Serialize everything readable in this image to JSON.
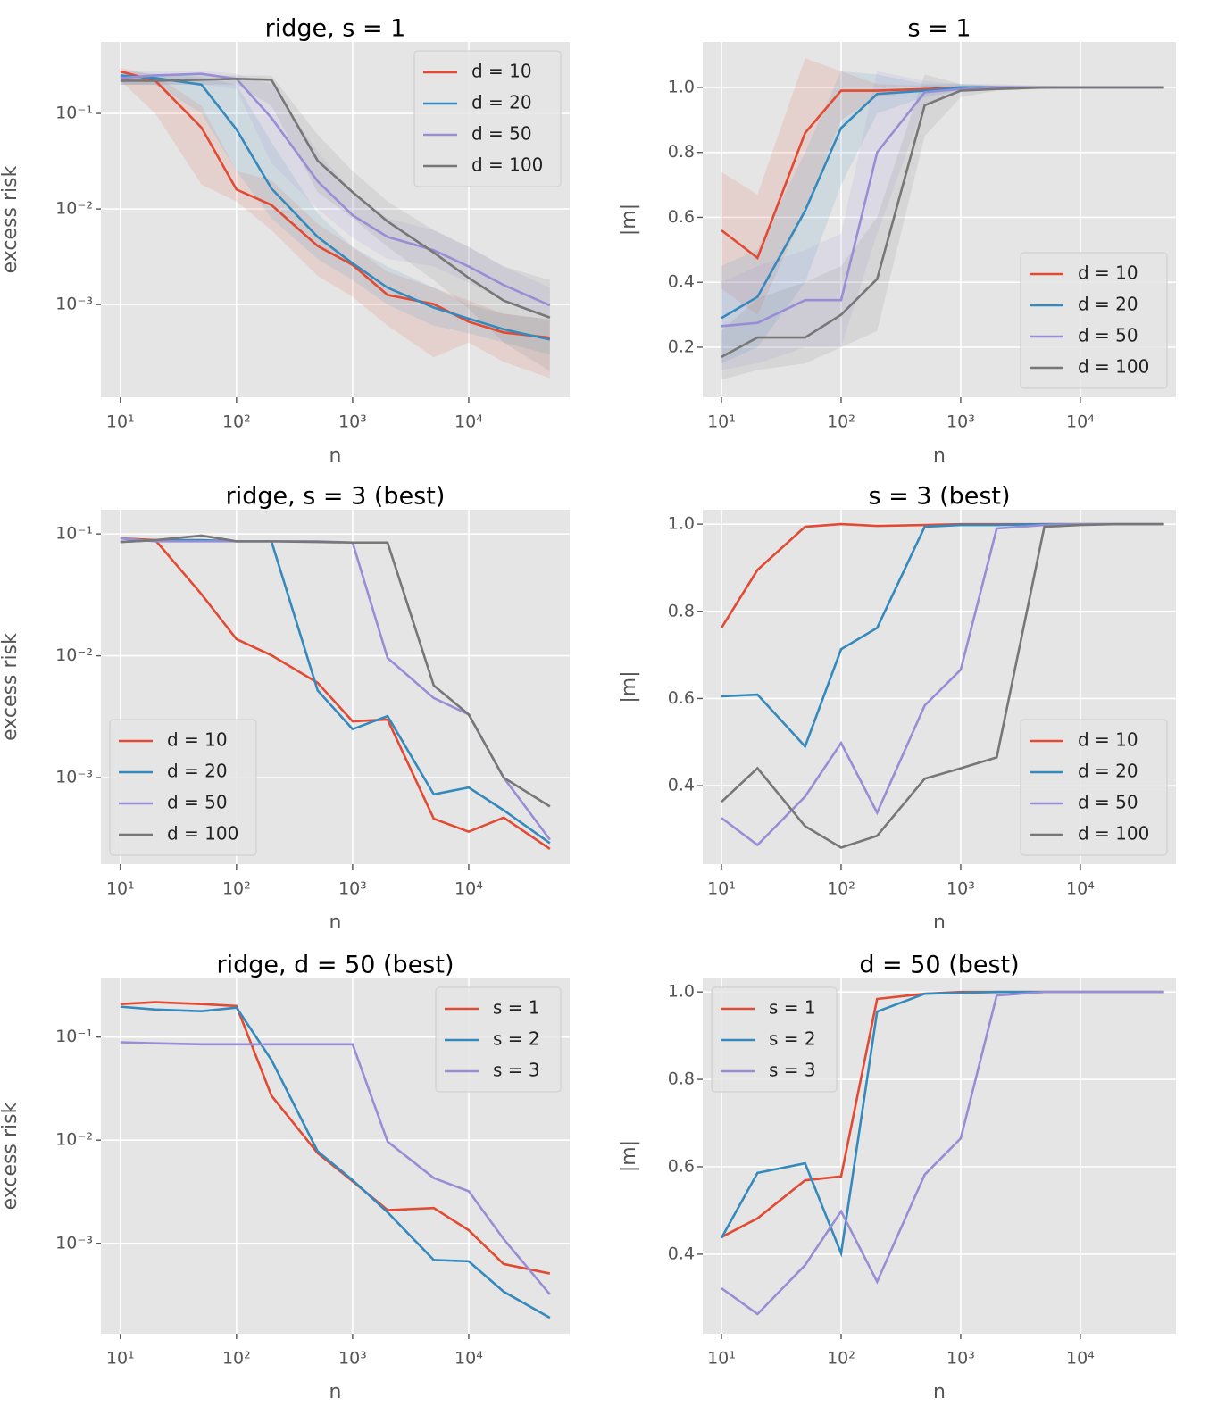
{
  "chart_data": [
    {
      "type": "line",
      "title": "ridge, s = 1",
      "xlabel": "n",
      "ylabel": "excess risk",
      "xscale": "log",
      "yscale": "log",
      "grid": true,
      "legend": "upper right",
      "x": [
        10,
        20,
        50,
        100,
        200,
        500,
        1000,
        2000,
        5000,
        10000,
        20000,
        50000
      ],
      "xlim": [
        6.8,
        74000
      ],
      "xticks": [
        {
          "value": 10,
          "label": "10¹"
        },
        {
          "value": 100,
          "label": "10²"
        },
        {
          "value": 1000,
          "label": "10³"
        },
        {
          "value": 10000,
          "label": "10⁴"
        }
      ],
      "ylim": [
        0.000107,
        0.56
      ],
      "yticks": [
        {
          "value": 0.1,
          "label": "10⁻¹"
        },
        {
          "value": 0.01,
          "label": "10⁻²"
        },
        {
          "value": 0.001,
          "label": "10⁻³"
        }
      ],
      "series": [
        {
          "name": "d = 10",
          "color": "#E24A33",
          "values": [
            0.275,
            0.22,
            0.071,
            0.016,
            0.011,
            0.0041,
            0.0026,
            0.00126,
            0.00101,
            0.00066,
            0.00051,
            0.00045
          ],
          "lower": [
            0.22,
            0.1,
            0.018,
            0.012,
            0.006,
            0.002,
            0.0012,
            0.0006,
            0.00028,
            0.0004,
            0.00025,
            0.00017
          ],
          "upper": [
            0.3,
            0.25,
            0.12,
            0.025,
            0.02,
            0.007,
            0.004,
            0.0022,
            0.0015,
            0.0011,
            0.0008,
            0.0007
          ]
        },
        {
          "name": "d = 20",
          "color": "#348ABD",
          "values": [
            0.25,
            0.235,
            0.2,
            0.068,
            0.0164,
            0.0051,
            0.0027,
            0.0015,
            0.00093,
            0.00071,
            0.00055,
            0.00043
          ],
          "lower": [
            0.2,
            0.2,
            0.1,
            0.025,
            0.008,
            0.003,
            0.0018,
            0.001,
            0.0006,
            0.0005,
            0.0004,
            0.0003
          ],
          "upper": [
            0.28,
            0.26,
            0.24,
            0.2,
            0.05,
            0.009,
            0.004,
            0.0025,
            0.0015,
            0.001,
            0.0008,
            0.0007
          ]
        },
        {
          "name": "d = 50",
          "color": "#988ED5",
          "values": [
            0.235,
            0.25,
            0.26,
            0.23,
            0.09,
            0.0195,
            0.0086,
            0.0051,
            0.0037,
            0.0025,
            0.0016,
            0.00098
          ],
          "lower": [
            0.2,
            0.2,
            0.2,
            0.18,
            0.03,
            0.01,
            0.005,
            0.003,
            0.0025,
            0.0017,
            0.0011,
            0.0007
          ],
          "upper": [
            0.27,
            0.28,
            0.28,
            0.26,
            0.2,
            0.04,
            0.015,
            0.008,
            0.006,
            0.004,
            0.0025,
            0.0015
          ]
        },
        {
          "name": "d = 100",
          "color": "#777777",
          "values": [
            0.22,
            0.22,
            0.225,
            0.23,
            0.225,
            0.032,
            0.015,
            0.0074,
            0.0035,
            0.0019,
            0.0011,
            0.00073
          ],
          "lower": [
            0.2,
            0.2,
            0.2,
            0.2,
            0.12,
            0.015,
            0.008,
            0.004,
            0.0018,
            0.0009,
            0.0004,
            0.0002
          ],
          "upper": [
            0.25,
            0.25,
            0.25,
            0.25,
            0.25,
            0.06,
            0.025,
            0.012,
            0.006,
            0.004,
            0.0025,
            0.0018
          ]
        }
      ]
    },
    {
      "type": "line",
      "title": "s = 1",
      "xlabel": "n",
      "ylabel": "|m|",
      "xscale": "log",
      "yscale": "linear",
      "grid": true,
      "legend": "lower right",
      "x": [
        10,
        20,
        50,
        100,
        200,
        500,
        1000,
        2000,
        5000,
        10000,
        20000,
        50000
      ],
      "xlim": [
        6.97,
        63000
      ],
      "xticks": [
        {
          "value": 10,
          "label": "10¹"
        },
        {
          "value": 100,
          "label": "10²"
        },
        {
          "value": 1000,
          "label": "10³"
        },
        {
          "value": 10000,
          "label": "10⁴"
        }
      ],
      "ylim": [
        0.046,
        1.14
      ],
      "yticks": [
        0.2,
        0.4,
        0.6,
        0.8,
        {
          "value": 1,
          "label": "1.0"
        }
      ],
      "series": [
        {
          "name": "d = 10",
          "color": "#E24A33",
          "values": [
            0.56,
            0.475,
            0.86,
            0.99,
            0.99,
            0.995,
            1,
            1,
            1,
            1,
            1,
            1
          ],
          "lower": [
            0.38,
            0.3,
            0.62,
            0.9,
            0.97,
            0.99,
            0.995,
            0.998,
            0.999,
            0.999,
            0.999,
            0.999
          ],
          "upper": [
            0.74,
            0.67,
            1.09,
            1.05,
            1.01,
            1.005,
            1.003,
            1.002,
            1.001,
            1.001,
            1.001,
            1.001
          ]
        },
        {
          "name": "d = 20",
          "color": "#348ABD",
          "values": [
            0.29,
            0.355,
            0.62,
            0.875,
            0.98,
            0.99,
            1,
            1,
            1,
            1,
            1,
            1
          ],
          "lower": [
            0.15,
            0.2,
            0.4,
            0.7,
            0.92,
            0.97,
            0.99,
            0.995,
            0.998,
            0.999,
            0.999,
            0.999
          ],
          "upper": [
            0.45,
            0.5,
            0.8,
            1.05,
            1.04,
            1.01,
            1.01,
            1.005,
            1.002,
            1.001,
            1.001,
            1.001
          ]
        },
        {
          "name": "d = 50",
          "color": "#988ED5",
          "values": [
            0.265,
            0.275,
            0.345,
            0.345,
            0.8,
            0.985,
            0.995,
            1,
            1,
            1,
            1,
            1
          ],
          "lower": [
            0.13,
            0.15,
            0.2,
            0.2,
            0.55,
            0.95,
            0.99,
            0.995,
            0.998,
            0.999,
            0.999,
            0.999
          ],
          "upper": [
            0.4,
            0.45,
            0.5,
            0.55,
            1.05,
            1.02,
            1.01,
            1.005,
            1.002,
            1.001,
            1.001,
            1.001
          ]
        },
        {
          "name": "d = 100",
          "color": "#777777",
          "values": [
            0.17,
            0.23,
            0.23,
            0.3,
            0.41,
            0.945,
            0.99,
            0.995,
            1,
            1,
            1,
            1
          ],
          "lower": [
            0.1,
            0.13,
            0.15,
            0.2,
            0.25,
            0.85,
            0.97,
            0.99,
            0.995,
            0.998,
            0.999,
            0.999
          ],
          "upper": [
            0.25,
            0.35,
            0.4,
            0.45,
            0.6,
            1.04,
            1.01,
            1.01,
            1.005,
            1.002,
            1.001,
            1.001
          ]
        }
      ]
    },
    {
      "type": "line",
      "title": "ridge, s = 3 (best)",
      "xlabel": "n",
      "ylabel": "excess risk",
      "xscale": "log",
      "yscale": "log",
      "grid": true,
      "legend": "lower left",
      "x": [
        10,
        20,
        50,
        100,
        200,
        500,
        1000,
        2000,
        5000,
        10000,
        20000,
        50000
      ],
      "xlim": [
        6.8,
        74000
      ],
      "xticks": [
        {
          "value": 10,
          "label": "10¹"
        },
        {
          "value": 100,
          "label": "10²"
        },
        {
          "value": 1000,
          "label": "10³"
        },
        {
          "value": 10000,
          "label": "10⁴"
        }
      ],
      "ylim": [
        0.000195,
        0.158
      ],
      "yticks": [
        {
          "value": 0.1,
          "label": "10⁻¹"
        },
        {
          "value": 0.01,
          "label": "10⁻²"
        },
        {
          "value": 0.001,
          "label": "10⁻³"
        }
      ],
      "series": [
        {
          "name": "d = 10",
          "color": "#E24A33",
          "values": [
            0.092,
            0.089,
            0.032,
            0.0137,
            0.0101,
            0.006,
            0.0029,
            0.003,
            0.00046,
            0.00036,
            0.00047,
            0.00026
          ]
        },
        {
          "name": "d = 20",
          "color": "#348ABD",
          "values": [
            0.086,
            0.089,
            0.089,
            0.087,
            0.087,
            0.0052,
            0.0025,
            0.0032,
            0.00073,
            0.00083,
            0.00054,
            0.00029
          ]
        },
        {
          "name": "d = 50",
          "color": "#988ED5",
          "values": [
            0.092,
            0.087,
            0.087,
            0.087,
            0.087,
            0.087,
            0.085,
            0.0096,
            0.0045,
            0.0033,
            0.001,
            0.00031
          ]
        },
        {
          "name": "d = 100",
          "color": "#777777",
          "values": [
            0.086,
            0.089,
            0.097,
            0.087,
            0.087,
            0.086,
            0.085,
            0.085,
            0.0057,
            0.0033,
            0.001,
            0.00058
          ]
        }
      ]
    },
    {
      "type": "line",
      "title": "s = 3 (best)",
      "xlabel": "n",
      "ylabel": "|m|",
      "xscale": "log",
      "yscale": "linear",
      "grid": true,
      "legend": "lower right",
      "x": [
        10,
        20,
        50,
        100,
        200,
        500,
        1000,
        2000,
        5000,
        10000,
        20000,
        50000
      ],
      "xlim": [
        6.97,
        63000
      ],
      "xticks": [
        {
          "value": 10,
          "label": "10¹"
        },
        {
          "value": 100,
          "label": "10²"
        },
        {
          "value": 1000,
          "label": "10³"
        },
        {
          "value": 10000,
          "label": "10⁴"
        }
      ],
      "ylim": [
        0.22,
        1.033
      ],
      "yticks": [
        0.4,
        0.6,
        0.8,
        {
          "value": 1,
          "label": "1.0"
        }
      ],
      "series": [
        {
          "name": "d = 10",
          "color": "#E24A33",
          "values": [
            0.762,
            0.895,
            0.994,
            1,
            0.996,
            0.998,
            1,
            1,
            1,
            1,
            1,
            1
          ]
        },
        {
          "name": "d = 20",
          "color": "#348ABD",
          "values": [
            0.605,
            0.609,
            0.49,
            0.713,
            0.762,
            0.994,
            0.998,
            0.998,
            1,
            1,
            1,
            1
          ]
        },
        {
          "name": "d = 50",
          "color": "#988ED5",
          "values": [
            0.326,
            0.264,
            0.375,
            0.498,
            0.338,
            0.584,
            0.666,
            0.99,
            0.998,
            1,
            1,
            1
          ]
        },
        {
          "name": "d = 100",
          "color": "#777777",
          "values": [
            0.363,
            0.44,
            0.307,
            0.258,
            0.285,
            0.416,
            0.44,
            0.465,
            0.994,
            0.998,
            1,
            1
          ]
        }
      ]
    },
    {
      "type": "line",
      "title": "ridge, d = 50 (best)",
      "xlabel": "n",
      "ylabel": "excess risk",
      "xscale": "log",
      "yscale": "log",
      "grid": true,
      "legend": "upper right",
      "x": [
        10,
        20,
        50,
        100,
        200,
        500,
        1000,
        2000,
        5000,
        10000,
        20000,
        50000
      ],
      "xlim": [
        6.8,
        74000
      ],
      "xticks": [
        {
          "value": 10,
          "label": "10¹"
        },
        {
          "value": 100,
          "label": "10²"
        },
        {
          "value": 1000,
          "label": "10³"
        },
        {
          "value": 10000,
          "label": "10⁴"
        }
      ],
      "ylim": [
        0.000133,
        0.37
      ],
      "yticks": [
        {
          "value": 0.1,
          "label": "10⁻¹"
        },
        {
          "value": 0.01,
          "label": "10⁻²"
        },
        {
          "value": 0.001,
          "label": "10⁻³"
        }
      ],
      "series": [
        {
          "name": "s = 1",
          "color": "#E24A33",
          "values": [
            0.209,
            0.218,
            0.209,
            0.2,
            0.027,
            0.0075,
            0.004,
            0.0021,
            0.0022,
            0.00134,
            0.00063,
            0.00051
          ]
        },
        {
          "name": "s = 2",
          "color": "#348ABD",
          "values": [
            0.197,
            0.185,
            0.178,
            0.193,
            0.06,
            0.0078,
            0.0041,
            0.002,
            0.00069,
            0.00067,
            0.00034,
            0.00019
          ]
        },
        {
          "name": "s = 3",
          "color": "#988ED5",
          "values": [
            0.089,
            0.087,
            0.085,
            0.085,
            0.085,
            0.085,
            0.085,
            0.0097,
            0.0043,
            0.0032,
            0.0011,
            0.00032
          ]
        }
      ]
    },
    {
      "type": "line",
      "title": "d = 50 (best)",
      "xlabel": "n",
      "ylabel": "|m|",
      "xscale": "log",
      "yscale": "linear",
      "grid": true,
      "legend": "upper left",
      "x": [
        10,
        20,
        50,
        100,
        200,
        500,
        1000,
        2000,
        5000,
        10000,
        20000,
        50000
      ],
      "xlim": [
        6.97,
        63000
      ],
      "xticks": [
        {
          "value": 10,
          "label": "10¹"
        },
        {
          "value": 100,
          "label": "10²"
        },
        {
          "value": 1000,
          "label": "10³"
        },
        {
          "value": 10000,
          "label": "10⁴"
        }
      ],
      "ylim": [
        0.218,
        1.031
      ],
      "yticks": [
        0.4,
        0.6,
        0.8,
        {
          "value": 1,
          "label": "1.0"
        }
      ],
      "series": [
        {
          "name": "s = 1",
          "color": "#E24A33",
          "values": [
            0.439,
            0.482,
            0.569,
            0.578,
            0.984,
            0.996,
            1,
            1,
            1,
            1,
            1,
            1
          ]
        },
        {
          "name": "s = 2",
          "color": "#348ABD",
          "values": [
            0.437,
            0.586,
            0.608,
            0.402,
            0.955,
            0.996,
            0.998,
            1,
            1,
            1,
            1,
            1
          ]
        },
        {
          "name": "s = 3",
          "color": "#988ED5",
          "values": [
            0.322,
            0.263,
            0.375,
            0.498,
            0.337,
            0.582,
            0.665,
            0.992,
            1,
            1,
            1,
            1
          ]
        }
      ]
    }
  ]
}
